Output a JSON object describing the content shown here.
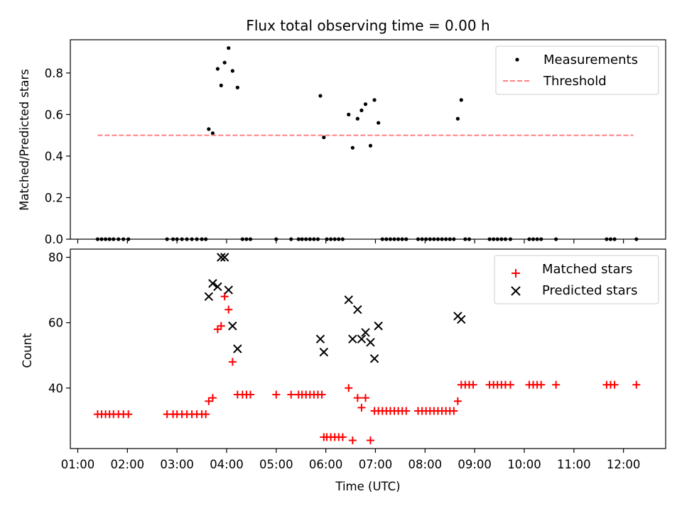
{
  "chart_data": [
    {
      "type": "scatter",
      "title": "Flux total observing time = 0.00 h",
      "xlabel": "",
      "ylabel": "Matched/Predicted stars",
      "xlim": [
        0.85,
        12.85
      ],
      "ylim": [
        0.0,
        0.96
      ],
      "yticks": [
        0.0,
        0.2,
        0.4,
        0.6,
        0.8
      ],
      "ytick_labels": [
        "0.0",
        "0.2",
        "0.4",
        "0.6",
        "0.8"
      ],
      "legend_position": "top-right",
      "series": [
        {
          "name": "Measurements",
          "kind": "points",
          "color": "#000000",
          "points": [
            [
              1.4,
              0
            ],
            [
              1.48,
              0
            ],
            [
              1.56,
              0
            ],
            [
              1.64,
              0
            ],
            [
              1.72,
              0
            ],
            [
              1.82,
              0
            ],
            [
              1.92,
              0
            ],
            [
              2.02,
              0
            ],
            [
              2.8,
              0
            ],
            [
              2.92,
              0
            ],
            [
              3.0,
              0
            ],
            [
              3.1,
              0
            ],
            [
              3.2,
              0
            ],
            [
              3.3,
              0
            ],
            [
              3.4,
              0
            ],
            [
              3.5,
              0
            ],
            [
              3.58,
              0
            ],
            [
              3.64,
              0.53
            ],
            [
              3.72,
              0.51
            ],
            [
              3.82,
              0.82
            ],
            [
              3.89,
              0.74
            ],
            [
              3.96,
              0.85
            ],
            [
              4.04,
              0.92
            ],
            [
              4.12,
              0.81
            ],
            [
              4.22,
              0.73
            ],
            [
              4.32,
              0
            ],
            [
              4.4,
              0
            ],
            [
              4.48,
              0
            ],
            [
              5.0,
              0
            ],
            [
              5.3,
              0
            ],
            [
              5.45,
              0
            ],
            [
              5.52,
              0
            ],
            [
              5.6,
              0
            ],
            [
              5.68,
              0
            ],
            [
              5.76,
              0
            ],
            [
              5.84,
              0
            ],
            [
              5.89,
              0.69
            ],
            [
              5.96,
              0.49
            ],
            [
              6.02,
              0
            ],
            [
              6.1,
              0
            ],
            [
              6.18,
              0
            ],
            [
              6.26,
              0
            ],
            [
              6.34,
              0
            ],
            [
              6.46,
              0.6
            ],
            [
              6.54,
              0.44
            ],
            [
              6.64,
              0.58
            ],
            [
              6.72,
              0.62
            ],
            [
              6.8,
              0.65
            ],
            [
              6.9,
              0.45
            ],
            [
              6.98,
              0.67
            ],
            [
              7.06,
              0.56
            ],
            [
              7.14,
              0
            ],
            [
              7.22,
              0
            ],
            [
              7.3,
              0
            ],
            [
              7.38,
              0
            ],
            [
              7.46,
              0
            ],
            [
              7.54,
              0
            ],
            [
              7.62,
              0
            ],
            [
              7.86,
              0
            ],
            [
              7.94,
              0
            ],
            [
              8.02,
              0
            ],
            [
              8.1,
              0
            ],
            [
              8.18,
              0
            ],
            [
              8.26,
              0
            ],
            [
              8.34,
              0
            ],
            [
              8.42,
              0
            ],
            [
              8.5,
              0
            ],
            [
              8.58,
              0
            ],
            [
              8.66,
              0.58
            ],
            [
              8.73,
              0.67
            ],
            [
              8.81,
              0
            ],
            [
              8.89,
              0
            ],
            [
              9.3,
              0
            ],
            [
              9.38,
              0
            ],
            [
              9.46,
              0
            ],
            [
              9.54,
              0
            ],
            [
              9.62,
              0
            ],
            [
              9.72,
              0
            ],
            [
              10.1,
              0
            ],
            [
              10.18,
              0
            ],
            [
              10.26,
              0
            ],
            [
              10.34,
              0
            ],
            [
              10.64,
              0
            ],
            [
              11.66,
              0
            ],
            [
              11.74,
              0
            ],
            [
              11.82,
              0
            ],
            [
              12.26,
              0
            ]
          ]
        },
        {
          "name": "Threshold",
          "kind": "dashed-line",
          "color": "#ff7f7f",
          "x": [
            1.4,
            12.2
          ],
          "y": [
            0.5,
            0.5
          ]
        }
      ]
    },
    {
      "type": "scatter",
      "title": "",
      "xlabel": "Time (UTC)",
      "ylabel": "Count",
      "xlim": [
        0.85,
        12.85
      ],
      "ylim": [
        21.5,
        82.5
      ],
      "yticks": [
        40,
        60,
        80
      ],
      "ytick_labels": [
        "40",
        "60",
        "80"
      ],
      "xticks": [
        1,
        2,
        3,
        4,
        5,
        6,
        7,
        8,
        9,
        10,
        11,
        12
      ],
      "xtick_labels": [
        "01:00",
        "02:00",
        "03:00",
        "04:00",
        "05:00",
        "06:00",
        "07:00",
        "08:00",
        "09:00",
        "10:00",
        "11:00",
        "12:00"
      ],
      "legend_position": "top-right",
      "series": [
        {
          "name": "Matched stars",
          "kind": "plus-markers",
          "color": "#ff0000",
          "points": [
            [
              1.4,
              32
            ],
            [
              1.48,
              32
            ],
            [
              1.56,
              32
            ],
            [
              1.64,
              32
            ],
            [
              1.72,
              32
            ],
            [
              1.82,
              32
            ],
            [
              1.92,
              32
            ],
            [
              2.02,
              32
            ],
            [
              2.8,
              32
            ],
            [
              2.92,
              32
            ],
            [
              3.0,
              32
            ],
            [
              3.1,
              32
            ],
            [
              3.2,
              32
            ],
            [
              3.3,
              32
            ],
            [
              3.4,
              32
            ],
            [
              3.5,
              32
            ],
            [
              3.58,
              32
            ],
            [
              3.64,
              36
            ],
            [
              3.72,
              37
            ],
            [
              3.82,
              58
            ],
            [
              3.89,
              59
            ],
            [
              3.96,
              68
            ],
            [
              4.04,
              64
            ],
            [
              4.12,
              48
            ],
            [
              4.22,
              38
            ],
            [
              4.32,
              38
            ],
            [
              4.4,
              38
            ],
            [
              4.48,
              38
            ],
            [
              5.0,
              38
            ],
            [
              5.3,
              38
            ],
            [
              5.45,
              38
            ],
            [
              5.52,
              38
            ],
            [
              5.6,
              38
            ],
            [
              5.68,
              38
            ],
            [
              5.76,
              38
            ],
            [
              5.84,
              38
            ],
            [
              5.92,
              38
            ],
            [
              5.96,
              25
            ],
            [
              6.02,
              25
            ],
            [
              6.1,
              25
            ],
            [
              6.18,
              25
            ],
            [
              6.26,
              25
            ],
            [
              6.34,
              25
            ],
            [
              6.46,
              40
            ],
            [
              6.54,
              24
            ],
            [
              6.64,
              37
            ],
            [
              6.72,
              34
            ],
            [
              6.8,
              37
            ],
            [
              6.9,
              24
            ],
            [
              6.98,
              33
            ],
            [
              7.06,
              33
            ],
            [
              7.14,
              33
            ],
            [
              7.22,
              33
            ],
            [
              7.3,
              33
            ],
            [
              7.38,
              33
            ],
            [
              7.46,
              33
            ],
            [
              7.54,
              33
            ],
            [
              7.62,
              33
            ],
            [
              7.86,
              33
            ],
            [
              7.94,
              33
            ],
            [
              8.02,
              33
            ],
            [
              8.1,
              33
            ],
            [
              8.18,
              33
            ],
            [
              8.26,
              33
            ],
            [
              8.34,
              33
            ],
            [
              8.42,
              33
            ],
            [
              8.5,
              33
            ],
            [
              8.58,
              33
            ],
            [
              8.66,
              36
            ],
            [
              8.73,
              41
            ],
            [
              8.81,
              41
            ],
            [
              8.89,
              41
            ],
            [
              8.97,
              41
            ],
            [
              9.3,
              41
            ],
            [
              9.38,
              41
            ],
            [
              9.46,
              41
            ],
            [
              9.54,
              41
            ],
            [
              9.62,
              41
            ],
            [
              9.72,
              41
            ],
            [
              10.1,
              41
            ],
            [
              10.18,
              41
            ],
            [
              10.26,
              41
            ],
            [
              10.34,
              41
            ],
            [
              10.64,
              41
            ],
            [
              11.66,
              41
            ],
            [
              11.74,
              41
            ],
            [
              11.82,
              41
            ],
            [
              12.26,
              41
            ]
          ]
        },
        {
          "name": "Predicted stars",
          "kind": "x-markers",
          "color": "#000000",
          "points": [
            [
              3.64,
              68
            ],
            [
              3.72,
              72
            ],
            [
              3.82,
              71
            ],
            [
              3.89,
              80
            ],
            [
              3.96,
              80
            ],
            [
              4.04,
              70
            ],
            [
              4.12,
              59
            ],
            [
              4.22,
              52
            ],
            [
              5.89,
              55
            ],
            [
              5.96,
              51
            ],
            [
              6.46,
              67
            ],
            [
              6.54,
              55
            ],
            [
              6.64,
              64
            ],
            [
              6.72,
              55
            ],
            [
              6.8,
              57
            ],
            [
              6.9,
              54
            ],
            [
              6.98,
              49
            ],
            [
              7.06,
              59
            ],
            [
              8.66,
              62
            ],
            [
              8.73,
              61
            ]
          ]
        }
      ]
    }
  ]
}
